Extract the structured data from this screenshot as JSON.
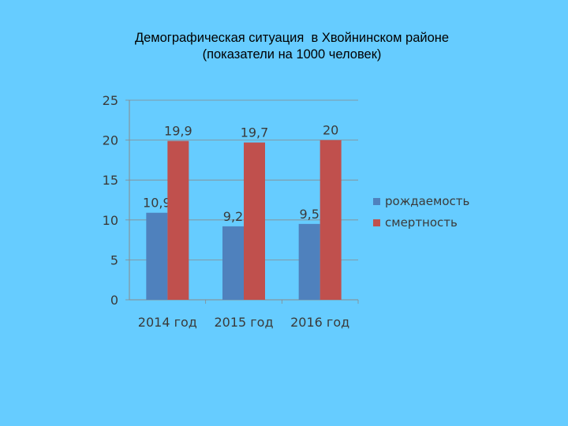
{
  "chart_data": {
    "type": "bar",
    "title": "Демографическая ситуация  в Хвойнинском районе",
    "subtitle": "(показатели на 1000 человек)",
    "categories": [
      "2014 год",
      "2015 год",
      "2016 год"
    ],
    "series": [
      {
        "name": "рождаемость",
        "values": [
          10.9,
          9.2,
          9.5
        ],
        "labels": [
          "10,9",
          "9,2",
          "9,5"
        ],
        "color": "#4f81bd"
      },
      {
        "name": "смертность",
        "values": [
          19.9,
          19.7,
          20
        ],
        "labels": [
          "19,9",
          "19,7",
          "20"
        ],
        "color": "#c0504d"
      }
    ],
    "ylim": [
      0,
      25
    ],
    "yticks": [
      0,
      5,
      10,
      15,
      20,
      25
    ],
    "grid": true,
    "legend": "right"
  }
}
